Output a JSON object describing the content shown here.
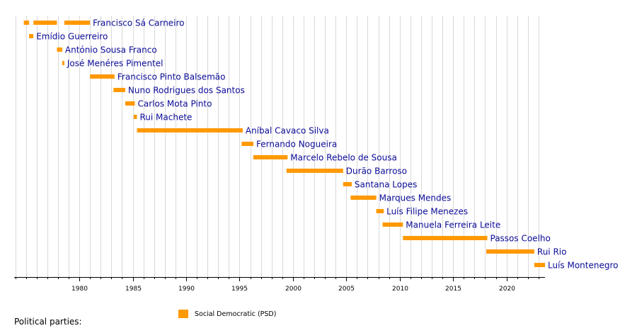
{
  "chart_data": {
    "type": "timeline",
    "title": "",
    "xlabel": "",
    "ylabel": "",
    "xlim": [
      1973.9,
      2023.6
    ],
    "grid": true,
    "x_ticks": [
      1980,
      1985,
      1990,
      1995,
      2000,
      2005,
      2010,
      2015,
      2020
    ],
    "series": [
      {
        "name": "Social Democratic (PSD)",
        "color": "#ff9900"
      }
    ],
    "rows": [
      {
        "name": "Francisco Sá Carneiro",
        "periods": [
          [
            1974.8,
            1975.3
          ],
          [
            1975.7,
            1977.9
          ],
          [
            1978.6,
            1981.0
          ]
        ]
      },
      {
        "name": "Emídio Guerreiro",
        "periods": [
          [
            1975.3,
            1975.7
          ]
        ]
      },
      {
        "name": "António Sousa Franco",
        "periods": [
          [
            1977.9,
            1978.4
          ]
        ]
      },
      {
        "name": "José Menéres Pimentel",
        "periods": [
          [
            1978.4,
            1978.6
          ]
        ]
      },
      {
        "name": "Francisco Pinto Balsemão",
        "periods": [
          [
            1981.0,
            1983.3
          ]
        ]
      },
      {
        "name": "Nuno Rodrigues dos Santos",
        "periods": [
          [
            1983.2,
            1984.3
          ]
        ]
      },
      {
        "name": "Carlos Mota Pinto",
        "periods": [
          [
            1984.3,
            1985.2
          ]
        ]
      },
      {
        "name": "Rui Machete",
        "periods": [
          [
            1985.1,
            1985.4
          ]
        ]
      },
      {
        "name": "Aníbal Cavaco Silva",
        "periods": [
          [
            1985.4,
            1995.3
          ]
        ]
      },
      {
        "name": "Fernando Nogueira",
        "periods": [
          [
            1995.2,
            1996.3
          ]
        ]
      },
      {
        "name": "Marcelo Rebelo de Sousa",
        "periods": [
          [
            1996.3,
            1999.5
          ]
        ]
      },
      {
        "name": "Durão Barroso",
        "periods": [
          [
            1999.4,
            2004.7
          ]
        ]
      },
      {
        "name": "Santana Lopes",
        "periods": [
          [
            2004.7,
            2005.5
          ]
        ]
      },
      {
        "name": "Marques Mendes",
        "periods": [
          [
            2005.4,
            2007.8
          ]
        ]
      },
      {
        "name": "Luís Filipe Menezes",
        "periods": [
          [
            2007.8,
            2008.5
          ]
        ]
      },
      {
        "name": "Manuela Ferreira Leite",
        "periods": [
          [
            2008.4,
            2010.3
          ]
        ]
      },
      {
        "name": "Passos Coelho",
        "periods": [
          [
            2010.3,
            2018.2
          ]
        ]
      },
      {
        "name": "Rui Rio",
        "periods": [
          [
            2018.1,
            2022.6
          ]
        ]
      },
      {
        "name": "Luís Montenegro",
        "periods": [
          [
            2022.6,
            2023.6
          ]
        ]
      }
    ]
  },
  "legend": {
    "title": "Political parties:",
    "items": [
      {
        "label": "Social Democratic (PSD)",
        "color": "#ff9900"
      }
    ]
  }
}
